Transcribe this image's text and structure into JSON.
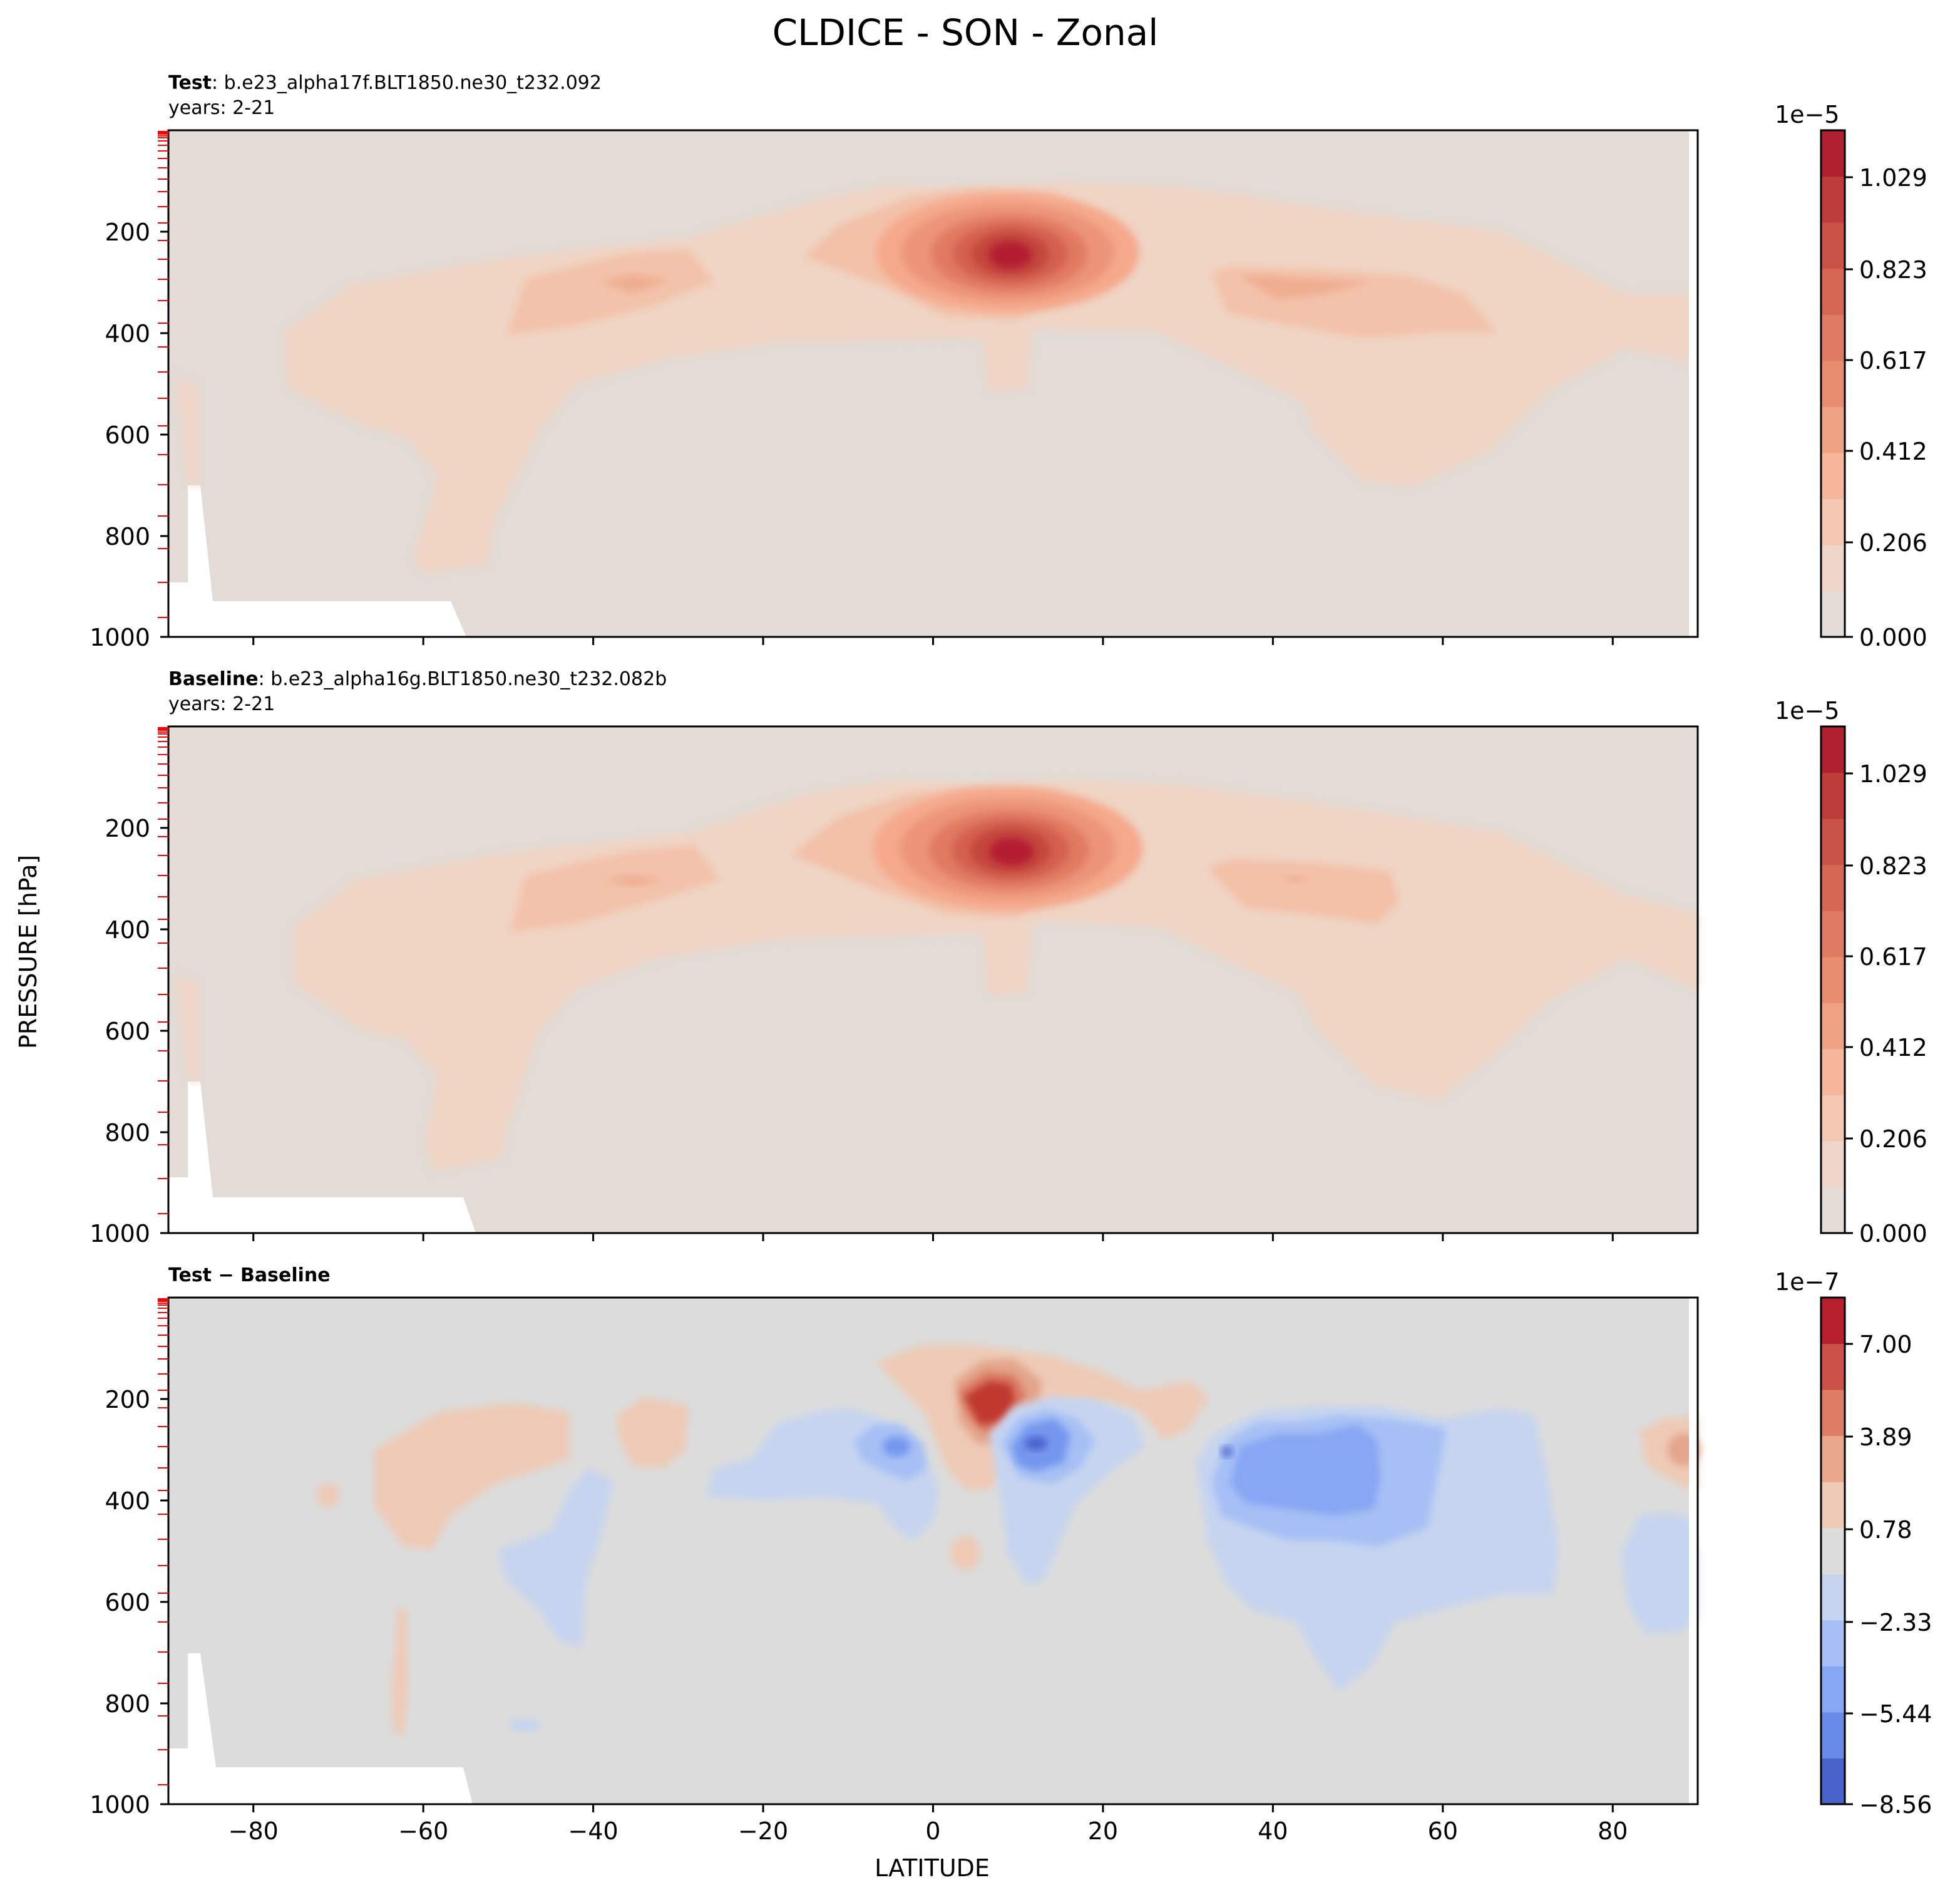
{
  "title": "CLDICE - SON - Zonal",
  "xlabel": "LATITUDE",
  "ylabel": "PRESSURE [hPa]",
  "x_ticks": [
    "−80",
    "−60",
    "−40",
    "−20",
    "0",
    "20",
    "40",
    "60",
    "80"
  ],
  "y_ticks": [
    "200",
    "400",
    "600",
    "800",
    "1000"
  ],
  "panels": [
    {
      "id": "test",
      "label_bold": "Test",
      "label_rest": ": b.e23_alpha17f.BLT1850.ne30_t232.092",
      "years": "years: 2-21",
      "cbar_exponent": "1e−5",
      "cbar_ticks": [
        "1.029",
        "0.823",
        "0.617",
        "0.412",
        "0.206",
        "0.000"
      ]
    },
    {
      "id": "baseline",
      "label_bold": "Baseline",
      "label_rest": ": b.e23_alpha16g.BLT1850.ne30_t232.082b",
      "years": "years: 2-21",
      "cbar_exponent": "1e−5",
      "cbar_ticks": [
        "1.029",
        "0.823",
        "0.617",
        "0.412",
        "0.206",
        "0.000"
      ]
    },
    {
      "id": "diff",
      "label_bold": "Test − Baseline",
      "label_rest": "",
      "years": "",
      "cbar_exponent": "1e−7",
      "cbar_ticks": [
        "7.00",
        "3.89",
        "0.78",
        "−2.33",
        "−5.44",
        "−8.56"
      ]
    }
  ],
  "chart_data": {
    "type": "heatmap",
    "title": "CLDICE - SON - Zonal",
    "xlabel": "LATITUDE",
    "ylabel": "PRESSURE [hPa]",
    "xlim": [
      -90,
      90
    ],
    "ylim": [
      1000,
      0
    ],
    "x_ticks": [
      -80,
      -60,
      -40,
      -20,
      0,
      20,
      40,
      60,
      80
    ],
    "y_ticks": [
      200,
      400,
      600,
      800,
      1000
    ],
    "panels": [
      {
        "name": "Test",
        "case": "b.e23_alpha17f.BLT1850.ne30_t232.092",
        "years": "2-21",
        "scale": "1e-5",
        "colorbar_ticks": [
          0.0,
          0.206,
          0.412,
          0.617,
          0.823,
          1.029
        ],
        "max_location": {
          "lat": 10,
          "pressure": 240
        },
        "secondary_maxima": [
          {
            "lat": -35,
            "pressure": 300
          },
          {
            "lat": 42,
            "pressure": 310
          }
        ]
      },
      {
        "name": "Baseline",
        "case": "b.e23_alpha16g.BLT1850.ne30_t232.082b",
        "years": "2-21",
        "scale": "1e-5",
        "colorbar_ticks": [
          0.0,
          0.206,
          0.412,
          0.617,
          0.823,
          1.029
        ],
        "max_location": {
          "lat": 10,
          "pressure": 240
        },
        "secondary_maxima": [
          {
            "lat": -35,
            "pressure": 300
          },
          {
            "lat": 42,
            "pressure": 310
          }
        ]
      },
      {
        "name": "Test − Baseline",
        "scale": "1e-7",
        "colorbar_ticks": [
          -8.56,
          -5.44,
          -2.33,
          0.78,
          3.89,
          7.0
        ],
        "positive_max": {
          "lat": 5,
          "pressure": 220
        },
        "negative_min": [
          {
            "lat": 12,
            "pressure": 300
          },
          {
            "lat": 40,
            "pressure": 330
          }
        ]
      }
    ],
    "colors": {
      "background": "#dddddd",
      "cmap_low": "#3b4cc0",
      "cmap_high": "#b40426"
    }
  }
}
